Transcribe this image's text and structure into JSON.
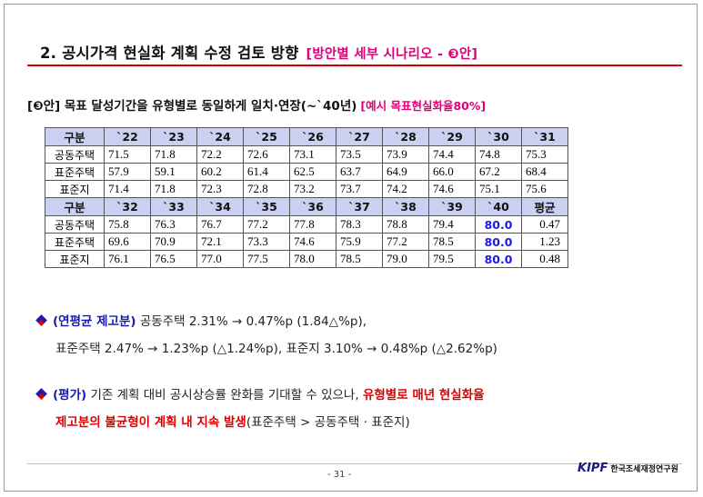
{
  "title": {
    "main": "2. 공시가격 현실화 계획 수정 검토 방향",
    "sub": "[방안별 세부 시나리오 - ❸안]"
  },
  "subhead": {
    "part1": "[❸안] 목표 달성기간을 유형별로 동일하게 일치·연장(~`40년)",
    "example": "[예시 목표현실화율80%]"
  },
  "table": {
    "header1": [
      "구분",
      "`22",
      "`23",
      "`24",
      "`25",
      "`26",
      "`27",
      "`28",
      "`29",
      "`30",
      "`31"
    ],
    "rows1": [
      {
        "label": "공동주택",
        "values": [
          "71.5",
          "71.8",
          "72.2",
          "72.6",
          "73.1",
          "73.5",
          "73.9",
          "74.4",
          "74.8",
          "75.3"
        ]
      },
      {
        "label": "표준주택",
        "values": [
          "57.9",
          "59.1",
          "60.2",
          "61.4",
          "62.5",
          "63.7",
          "64.9",
          "66.0",
          "67.2",
          "68.4"
        ]
      },
      {
        "label": "표준지",
        "values": [
          "71.4",
          "71.8",
          "72.3",
          "72.8",
          "73.2",
          "73.7",
          "74.2",
          "74.6",
          "75.1",
          "75.6"
        ]
      }
    ],
    "header2": [
      "구분",
      "`32",
      "`33",
      "`34",
      "`35",
      "`36",
      "`37",
      "`38",
      "`39",
      "`40",
      "평균"
    ],
    "rows2": [
      {
        "label": "공동주택",
        "values": [
          "75.8",
          "76.3",
          "76.7",
          "77.2",
          "77.8",
          "78.3",
          "78.8",
          "79.4"
        ],
        "target": "80.0",
        "avg": "0.47"
      },
      {
        "label": "표준주택",
        "values": [
          "69.6",
          "70.9",
          "72.1",
          "73.3",
          "74.6",
          "75.9",
          "77.2",
          "78.5"
        ],
        "target": "80.0",
        "avg": "1.23"
      },
      {
        "label": "표준지",
        "values": [
          "76.1",
          "76.5",
          "77.0",
          "77.5",
          "78.0",
          "78.5",
          "79.0",
          "79.5"
        ],
        "target": "80.0",
        "avg": "0.48"
      }
    ]
  },
  "bullet1": {
    "tag": "(연평균 제고분)",
    "line1": "공동주택 2.31% → 0.47%p (1.84△%p),",
    "line2": "표준주택 2.47% → 1.23%p (△1.24%p), 표준지 3.10% → 0.48%p (△2.62%p)"
  },
  "bullet2": {
    "tag": "(평가)",
    "text": "기존 계획 대비 공시상승률 완화를 기대할 수 있으나,",
    "red1": "유형별로 매년 현실화율",
    "red2": "제고분의 불균형이 계획 내 지속 발생",
    "tail": "(표준주택 > 공동주택 · 표준지)"
  },
  "footer": {
    "page": "- 31 -",
    "logo_mark": "KIPF",
    "logo_name": "한국조세재정연구원"
  },
  "colors": {
    "accent_red": "#d20000",
    "accent_pink": "#e0007a",
    "header_fill": "#c9d0f0",
    "target_blue": "#1a1ae0"
  }
}
